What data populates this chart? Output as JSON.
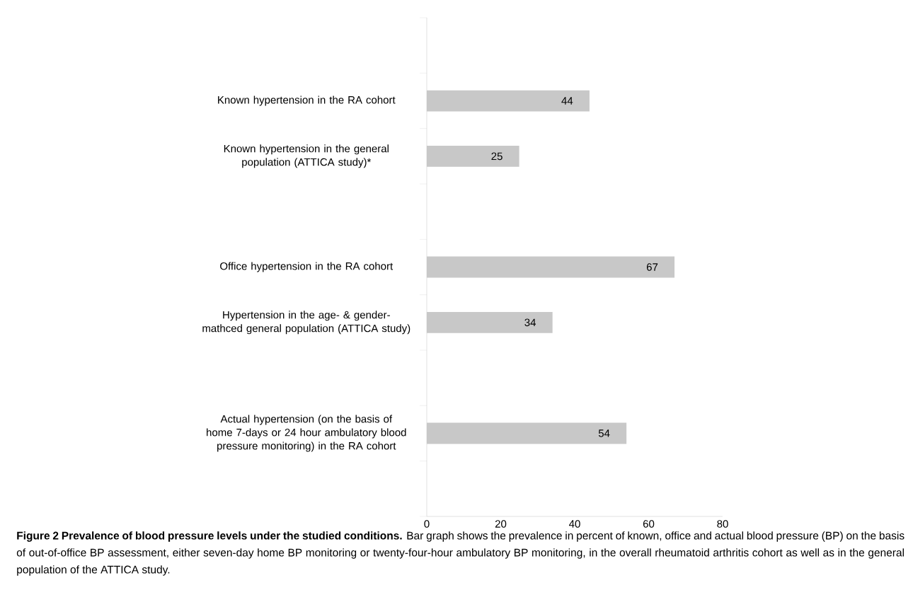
{
  "chart_data": {
    "type": "bar",
    "orientation": "horizontal",
    "title": "Figure 2 Prevalence of blood pressure levels under the studied conditions.",
    "annotations": [
      "Bar graph shows the prevalence in percent of known, office and actual blood pressure (BP) on the basis of out-of-office BP assessment, either seven-day home BP monitoring or twenty-four-hour ambulatory BP monitoring, in the overall rheumatoid arthritis cohort as well as in the general population of the ATTICA study."
    ],
    "categories": [
      null,
      "Known hypertension in the RA cohort",
      "Known hypertension in the  general population (ATTICA study)*",
      null,
      "Office hypertension in the RA cohort",
      "Hypertension in the age- & gender-mathced general population (ATTICA study)",
      null,
      "Actual hypertension (on the basis of home 7-days or 24 hour ambulatory blood pressure monitoring) in the RA cohort",
      null
    ],
    "values": [
      null,
      44,
      25,
      null,
      67,
      34,
      null,
      54,
      null
    ],
    "color": "#c8c8c8",
    "data_labels": true,
    "xlim": [
      0,
      80
    ],
    "xticks": [
      0,
      20,
      40,
      60,
      80
    ]
  }
}
